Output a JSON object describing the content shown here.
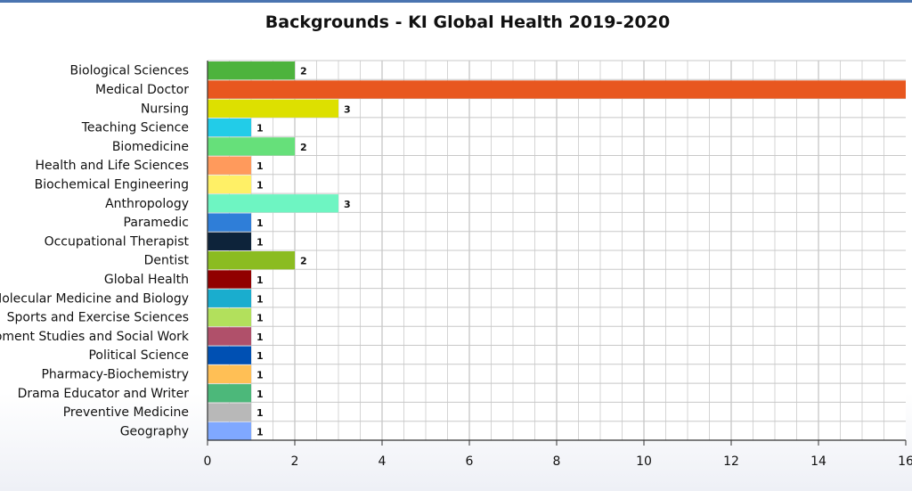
{
  "title": "Backgrounds - KI Global Health 2019-2020",
  "chart_data": {
    "type": "bar",
    "orientation": "horizontal",
    "title": "Backgrounds - KI Global Health 2019-2020",
    "xlabel": "",
    "ylabel": "",
    "xlim": [
      0,
      16
    ],
    "x_ticks": [
      0,
      2,
      4,
      6,
      8,
      10,
      12,
      14,
      16
    ],
    "grid": true,
    "categories": [
      "Biological Sciences",
      "Medical Doctor",
      "Nursing",
      "Teaching Science",
      "Biomedicine",
      "Health and Life Sciences",
      "Biochemical Engineering",
      "Anthropology",
      "Paramedic",
      "Occupational Therapist",
      "Dentist",
      "Global Health",
      "Molecular Medicine and Biology",
      "Sports and Exercise Sciences",
      "Development Studies and Social Work",
      "Political Science",
      "Pharmacy-Biochemistry",
      "Drama Educator and Writer",
      "Preventive Medicine",
      "Geography"
    ],
    "values": [
      2,
      16,
      3,
      1,
      2,
      1,
      1,
      3,
      1,
      1,
      2,
      1,
      1,
      1,
      1,
      1,
      1,
      1,
      1,
      1
    ],
    "data_labels": [
      "2",
      "",
      "3",
      "1",
      "2",
      "1",
      "1",
      "3",
      "1",
      "1",
      "2",
      "1",
      "1",
      "1",
      "1",
      "1",
      "1",
      "1",
      "1",
      "1"
    ],
    "colors": [
      "#4db33d",
      "#e8571f",
      "#dde000",
      "#22cce8",
      "#66e07a",
      "#ff9a5c",
      "#fff066",
      "#6ef5c2",
      "#2f7ed8",
      "#0d233a",
      "#8bbc21",
      "#910000",
      "#1aadce",
      "#b2e05c",
      "#b0506a",
      "#0050b3",
      "#ffbf55",
      "#4cb87a",
      "#b8b8b8",
      "#7fa8ff"
    ]
  }
}
